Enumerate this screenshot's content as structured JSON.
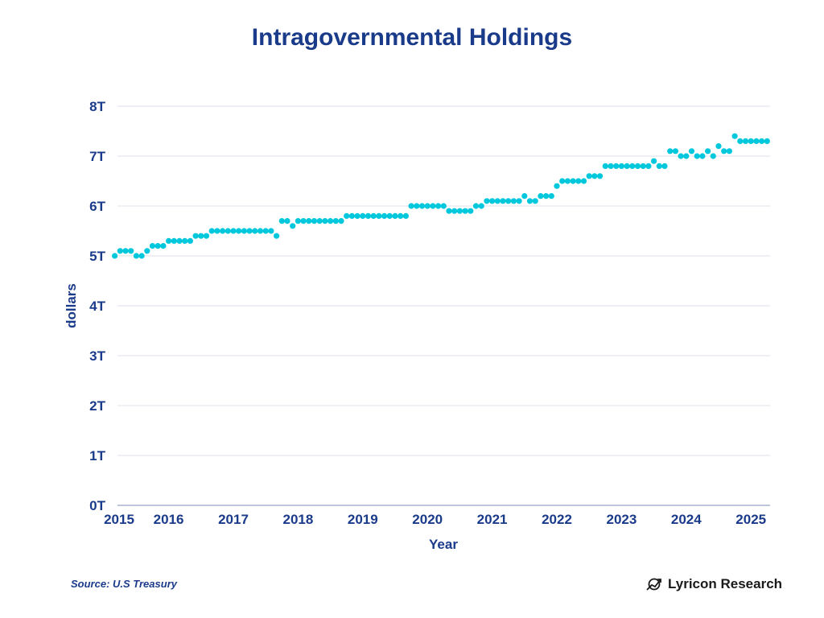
{
  "header": {
    "title": "Intragovernmental Holdings"
  },
  "footer": {
    "source": "Source: U.S Treasury",
    "brand": "Lyricon Research",
    "brand_icon": "chart-circle-logo-icon"
  },
  "colors": {
    "title": "#1a3a8a",
    "point": "#00c8dc",
    "grid": "#e3e6ef",
    "axis": "#aab4d0"
  },
  "chart_data": {
    "type": "scatter",
    "title": "Intragovernmental Holdings",
    "xlabel": "Year",
    "ylabel": "dollars",
    "xlim": [
      2015,
      2025.3
    ],
    "ylim": [
      0,
      8
    ],
    "x_ticks": [
      2015,
      2016,
      2017,
      2018,
      2019,
      2020,
      2021,
      2022,
      2023,
      2024,
      2025
    ],
    "x_tick_labels": [
      "2015",
      "2016",
      "2017",
      "2018",
      "2019",
      "2020",
      "2021",
      "2022",
      "2023",
      "2024",
      "2025"
    ],
    "y_ticks": [
      0,
      1,
      2,
      3,
      4,
      5,
      6,
      7,
      8
    ],
    "y_tick_labels": [
      "0T",
      "1T",
      "2T",
      "3T",
      "4T",
      "5T",
      "6T",
      "7T",
      "8T"
    ],
    "grid": true,
    "legend": "none",
    "series": [
      {
        "name": "Intragovernmental Holdings (trillions USD)",
        "start": "2015-03",
        "frequency": "monthly",
        "values": [
          5.0,
          5.1,
          5.1,
          5.1,
          5.0,
          5.0,
          5.1,
          5.2,
          5.2,
          5.2,
          5.3,
          5.3,
          5.3,
          5.3,
          5.3,
          5.4,
          5.4,
          5.4,
          5.5,
          5.5,
          5.5,
          5.5,
          5.5,
          5.5,
          5.5,
          5.5,
          5.5,
          5.5,
          5.5,
          5.5,
          5.4,
          5.7,
          5.7,
          5.6,
          5.7,
          5.7,
          5.7,
          5.7,
          5.7,
          5.7,
          5.7,
          5.7,
          5.7,
          5.8,
          5.8,
          5.8,
          5.8,
          5.8,
          5.8,
          5.8,
          5.8,
          5.8,
          5.8,
          5.8,
          5.8,
          6.0,
          6.0,
          6.0,
          6.0,
          6.0,
          6.0,
          6.0,
          5.9,
          5.9,
          5.9,
          5.9,
          5.9,
          6.0,
          6.0,
          6.1,
          6.1,
          6.1,
          6.1,
          6.1,
          6.1,
          6.1,
          6.2,
          6.1,
          6.1,
          6.2,
          6.2,
          6.2,
          6.4,
          6.5,
          6.5,
          6.5,
          6.5,
          6.5,
          6.6,
          6.6,
          6.6,
          6.8,
          6.8,
          6.8,
          6.8,
          6.8,
          6.8,
          6.8,
          6.8,
          6.8,
          6.9,
          6.8,
          6.8,
          7.1,
          7.1,
          7.0,
          7.0,
          7.1,
          7.0,
          7.0,
          7.1,
          7.0,
          7.2,
          7.1,
          7.1,
          7.4,
          7.3,
          7.3,
          7.3,
          7.3,
          7.3,
          7.3
        ]
      }
    ]
  }
}
